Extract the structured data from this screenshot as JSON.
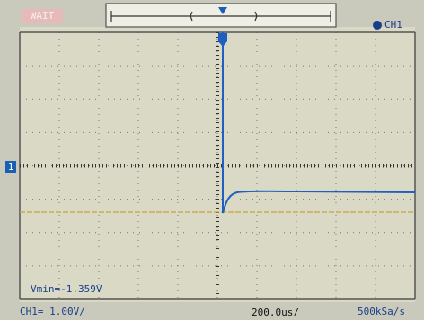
{
  "status": "WAIT",
  "channel": "CH1",
  "channel_marker": "1",
  "measurement": "Vmin=-1.359V",
  "footer": {
    "channel_scale": "CH1= 1.00V/",
    "time_scale": "200.0us/",
    "sample_rate": "500kSa/s"
  }
}
